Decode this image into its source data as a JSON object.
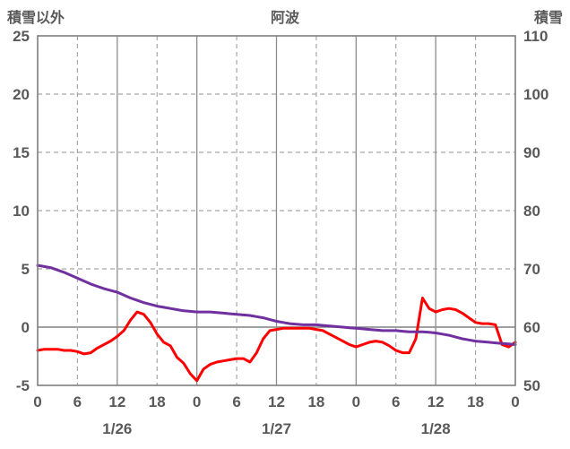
{
  "header": {
    "left_axis_title": "積雪以外",
    "title": "阿波",
    "right_axis_title": "積雪"
  },
  "colors": {
    "temp_line": "#ff0000",
    "snow_line": "#7030a0",
    "grid_dashed": "#a6a6a6",
    "grid_solid": "#8c8c8c",
    "zero_line": "#808080",
    "frame": "#7f7f7f",
    "text": "#595959",
    "background": "#ffffff"
  },
  "chart_data": {
    "type": "line",
    "title": "阿波",
    "left_axis": {
      "label": "積雪以外",
      "min": -5,
      "max": 25,
      "ticks": [
        25,
        20,
        15,
        10,
        5,
        0,
        -5
      ]
    },
    "right_axis": {
      "label": "積雪",
      "min": 50,
      "max": 110,
      "ticks": [
        110,
        100,
        90,
        80,
        70,
        60,
        50
      ]
    },
    "x_axis": {
      "min": 0,
      "max": 72,
      "tick_positions": [
        0,
        6,
        12,
        18,
        24,
        30,
        36,
        42,
        48,
        54,
        60,
        66,
        72
      ],
      "tick_labels": [
        "0",
        "6",
        "12",
        "18",
        "0",
        "6",
        "12",
        "18",
        "0",
        "6",
        "12",
        "18",
        "0"
      ],
      "day_labels": [
        {
          "pos": 12,
          "label": "1/26"
        },
        {
          "pos": 36,
          "label": "1/27"
        },
        {
          "pos": 60,
          "label": "1/28"
        }
      ]
    },
    "grid": {
      "horizontal": "dashed",
      "vertical_dashed_hours": [
        6,
        18,
        30,
        42,
        54,
        66
      ],
      "vertical_solid_hours": [
        12,
        24,
        36,
        48,
        60
      ]
    },
    "series": [
      {
        "name": "積雪以外",
        "axis": "left",
        "color": "#ff0000",
        "x": [
          0,
          1,
          2,
          3,
          4,
          5,
          6,
          7,
          8,
          9,
          10,
          11,
          12,
          13,
          14,
          15,
          16,
          17,
          18,
          19,
          20,
          21,
          22,
          23,
          24,
          25,
          26,
          27,
          28,
          29,
          30,
          31,
          32,
          33,
          34,
          35,
          36,
          37,
          38,
          39,
          40,
          41,
          42,
          43,
          44,
          45,
          46,
          47,
          48,
          49,
          50,
          51,
          52,
          53,
          54,
          55,
          56,
          57,
          58,
          59,
          60,
          61,
          62,
          63,
          64,
          65,
          66,
          67,
          68,
          69,
          70,
          71,
          72
        ],
        "values": [
          -2.0,
          -1.9,
          -1.9,
          -1.9,
          -2.0,
          -2.0,
          -2.1,
          -2.3,
          -2.2,
          -1.8,
          -1.5,
          -1.2,
          -0.8,
          -0.3,
          0.6,
          1.3,
          1.1,
          0.4,
          -0.6,
          -1.3,
          -1.6,
          -2.6,
          -3.1,
          -4.0,
          -4.6,
          -3.6,
          -3.2,
          -3.0,
          -2.9,
          -2.8,
          -2.7,
          -2.7,
          -3.0,
          -2.2,
          -1.0,
          -0.3,
          -0.2,
          -0.1,
          -0.1,
          -0.1,
          -0.1,
          -0.1,
          -0.2,
          -0.3,
          -0.6,
          -0.9,
          -1.2,
          -1.5,
          -1.7,
          -1.5,
          -1.3,
          -1.2,
          -1.3,
          -1.6,
          -2.0,
          -2.2,
          -2.2,
          -1.0,
          2.5,
          1.6,
          1.3,
          1.5,
          1.6,
          1.5,
          1.2,
          0.8,
          0.4,
          0.3,
          0.3,
          0.2,
          -1.5,
          -1.7,
          -1.3
        ]
      },
      {
        "name": "積雪",
        "axis": "right",
        "color": "#7030a0",
        "x": [
          0,
          1,
          2,
          3,
          4,
          5,
          6,
          7,
          8,
          9,
          10,
          11,
          12,
          13,
          14,
          15,
          16,
          17,
          18,
          19,
          20,
          21,
          22,
          23,
          24,
          25,
          26,
          27,
          28,
          29,
          30,
          31,
          32,
          33,
          34,
          35,
          36,
          37,
          38,
          39,
          40,
          41,
          42,
          43,
          44,
          45,
          46,
          47,
          48,
          49,
          50,
          51,
          52,
          53,
          54,
          55,
          56,
          57,
          58,
          59,
          60,
          61,
          62,
          63,
          64,
          65,
          66,
          67,
          68,
          69,
          70,
          71,
          72
        ],
        "values": [
          70.6,
          70.4,
          70.2,
          69.8,
          69.4,
          68.9,
          68.4,
          67.9,
          67.4,
          67.0,
          66.6,
          66.3,
          66.0,
          65.5,
          65.0,
          64.6,
          64.2,
          63.9,
          63.6,
          63.4,
          63.2,
          63.0,
          62.8,
          62.7,
          62.6,
          62.6,
          62.6,
          62.5,
          62.4,
          62.3,
          62.2,
          62.1,
          62.0,
          61.8,
          61.6,
          61.3,
          61.0,
          60.8,
          60.6,
          60.5,
          60.4,
          60.4,
          60.4,
          60.3,
          60.2,
          60.1,
          60.0,
          59.9,
          59.8,
          59.7,
          59.6,
          59.5,
          59.4,
          59.4,
          59.4,
          59.3,
          59.2,
          59.2,
          59.2,
          59.1,
          59.0,
          58.8,
          58.6,
          58.3,
          58.0,
          57.8,
          57.6,
          57.5,
          57.4,
          57.3,
          57.2,
          57.1,
          57.0
        ]
      }
    ]
  }
}
